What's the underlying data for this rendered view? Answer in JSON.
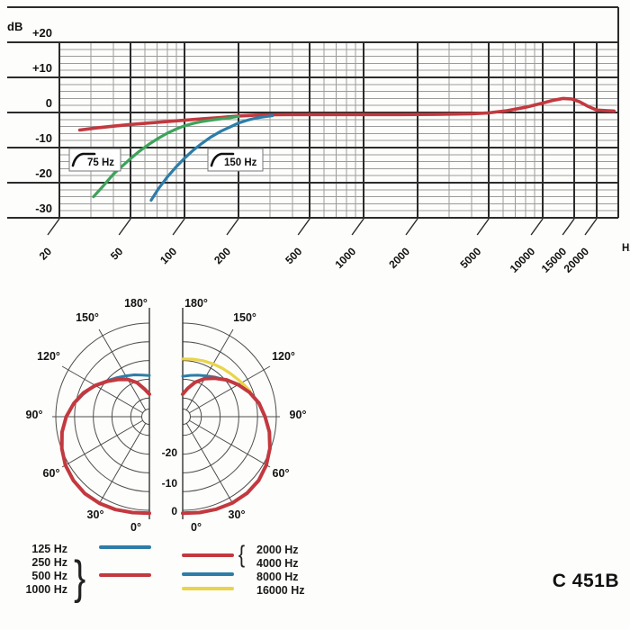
{
  "model_label": "C 451B",
  "colors": {
    "red": "#c2393f",
    "green": "#3da35a",
    "blue": "#2d7da8",
    "yellow": "#e9d44b",
    "grid_major": "#2b2b2b",
    "grid_minor": "#9b9b9b",
    "polar_grid": "#4d4d4d",
    "text": "#111111"
  },
  "chart_data": [
    {
      "type": "line",
      "name": "frequency-response",
      "x_scale": "log",
      "x_range_hz": [
        20,
        20000
      ],
      "y_range_db": [
        -30,
        20
      ],
      "y_unit": "dB",
      "x_unit": "Hz",
      "grid": "on",
      "y_ticks": [
        {
          "v": 20,
          "label": "+20"
        },
        {
          "v": 10,
          "label": "+10"
        },
        {
          "v": 0,
          "label": "0"
        },
        {
          "v": -10,
          "label": "-10"
        },
        {
          "v": -20,
          "label": "-20"
        },
        {
          "v": -30,
          "label": "-30"
        }
      ],
      "x_ticks": [
        {
          "v": 20,
          "label": "20"
        },
        {
          "v": 50,
          "label": "50"
        },
        {
          "v": 100,
          "label": "100"
        },
        {
          "v": 200,
          "label": "200"
        },
        {
          "v": 500,
          "label": "500"
        },
        {
          "v": 1000,
          "label": "1000"
        },
        {
          "v": 2000,
          "label": "2000"
        },
        {
          "v": 5000,
          "label": "5000"
        },
        {
          "v": 10000,
          "label": "10000"
        },
        {
          "v": 15000,
          "label": "15000"
        },
        {
          "v": 20000,
          "label": "20000"
        }
      ],
      "annotations": [
        {
          "label": "75 Hz",
          "symbol": "bass-cut-filter"
        },
        {
          "label": "150 Hz",
          "symbol": "bass-cut-filter"
        }
      ],
      "series": [
        {
          "name": "linear-response",
          "color": "red",
          "points": [
            [
              26,
              -5
            ],
            [
              32,
              -4.4
            ],
            [
              40,
              -3.9
            ],
            [
              50,
              -3.4
            ],
            [
              63,
              -3
            ],
            [
              80,
              -2.6
            ],
            [
              100,
              -2.2
            ],
            [
              125,
              -1.8
            ],
            [
              160,
              -1.4
            ],
            [
              200,
              -1
            ],
            [
              250,
              -0.75
            ],
            [
              315,
              -0.65
            ],
            [
              400,
              -0.6
            ],
            [
              630,
              -0.6
            ],
            [
              1000,
              -0.6
            ],
            [
              1600,
              -0.6
            ],
            [
              2500,
              -0.55
            ],
            [
              4000,
              -0.35
            ],
            [
              5000,
              -0.1
            ],
            [
              6300,
              0.5
            ],
            [
              8000,
              1.5
            ],
            [
              10000,
              2.7
            ],
            [
              11500,
              3.5
            ],
            [
              13000,
              4
            ],
            [
              14500,
              3.85
            ],
            [
              16000,
              3.1
            ],
            [
              18000,
              1.7
            ],
            [
              20000,
              0.7
            ],
            [
              25000,
              0.4
            ]
          ]
        },
        {
          "name": "bass-cut-75hz",
          "color": "green",
          "points": [
            [
              31,
              -24
            ],
            [
              35,
              -21
            ],
            [
              40,
              -17.6
            ],
            [
              45,
              -15.2
            ],
            [
              50,
              -13.1
            ],
            [
              56,
              -11
            ],
            [
              63,
              -9.1
            ],
            [
              71,
              -7.4
            ],
            [
              80,
              -5.9
            ],
            [
              90,
              -4.7
            ],
            [
              100,
              -3.8
            ],
            [
              112,
              -3.1
            ],
            [
              125,
              -2.6
            ],
            [
              140,
              -2.2
            ],
            [
              160,
              -1.8
            ],
            [
              180,
              -1.5
            ],
            [
              200,
              -1.1
            ]
          ]
        },
        {
          "name": "bass-cut-150hz",
          "color": "blue",
          "points": [
            [
              65,
              -25
            ],
            [
              72,
              -21.5
            ],
            [
              80,
              -18.4
            ],
            [
              90,
              -15.4
            ],
            [
              100,
              -13
            ],
            [
              112,
              -10.7
            ],
            [
              125,
              -8.8
            ],
            [
              140,
              -7
            ],
            [
              160,
              -5.3
            ],
            [
              180,
              -4.1
            ],
            [
              200,
              -3
            ],
            [
              224,
              -2.2
            ],
            [
              250,
              -1.6
            ],
            [
              280,
              -1.2
            ],
            [
              310,
              -0.9
            ]
          ]
        }
      ]
    },
    {
      "type": "polar",
      "name": "polar-pattern",
      "rings": 5,
      "db_ring_labels": [
        "-20",
        "-10",
        "0"
      ],
      "angle_labels": [
        "180°",
        "150°",
        "120°",
        "90°",
        "60°",
        "30°",
        "0°"
      ],
      "halves": {
        "left": [
          {
            "name": "125hz",
            "color": "blue",
            "points": [
              [
                180,
                -14
              ],
              [
                170,
                -13.7
              ],
              [
                160,
                -13.1
              ],
              [
                150,
                -12.4
              ],
              [
                140,
                -11.4
              ],
              [
                130,
                -10.1
              ],
              [
                122,
                -8.8
              ],
              [
                115,
                -7.5
              ],
              [
                108,
                -6.2
              ],
              [
                102,
                -5.1
              ]
            ]
          },
          {
            "name": "250-500-1000hz",
            "color": "red",
            "points": [
              [
                180,
                -19
              ],
              [
                170,
                -17.5
              ],
              [
                160,
                -15.3
              ],
              [
                150,
                -13.5
              ],
              [
                140,
                -12
              ],
              [
                130,
                -10.3
              ],
              [
                120,
                -8.3
              ],
              [
                110,
                -6.3
              ],
              [
                100,
                -4.5
              ],
              [
                90,
                -2.8
              ],
              [
                80,
                -1.3
              ],
              [
                70,
                -0.1
              ],
              [
                60,
                0.9
              ],
              [
                50,
                1.5
              ],
              [
                40,
                1.8
              ],
              [
                30,
                1.7
              ],
              [
                20,
                1.4
              ],
              [
                10,
                1
              ],
              [
                0,
                0.8
              ]
            ]
          }
        ],
        "right": [
          {
            "name": "8000hz",
            "color": "blue",
            "points": [
              [
                180,
                -14.2
              ],
              [
                170,
                -13.8
              ],
              [
                160,
                -13.2
              ],
              [
                150,
                -12.4
              ],
              [
                141,
                -11.4
              ],
              [
                133,
                -10.3
              ],
              [
                126,
                -9.1
              ],
              [
                120,
                -8.1
              ]
            ]
          },
          {
            "name": "16000hz",
            "color": "yellow",
            "points": [
              [
                180,
                -9.6
              ],
              [
                170,
                -9.4
              ],
              [
                160,
                -9.1
              ],
              [
                150,
                -8.7
              ],
              [
                141,
                -8.3
              ],
              [
                132,
                -7.8
              ],
              [
                124,
                -7.2
              ],
              [
                117,
                -6.5
              ],
              [
                111,
                -5.8
              ]
            ]
          },
          {
            "name": "2000-4000hz",
            "color": "red",
            "points": [
              [
                180,
                -19
              ],
              [
                170,
                -17.3
              ],
              [
                160,
                -15.2
              ],
              [
                150,
                -13.3
              ],
              [
                140,
                -11.6
              ],
              [
                130,
                -9.7
              ],
              [
                120,
                -7.9
              ],
              [
                110,
                -6
              ],
              [
                100,
                -4.3
              ],
              [
                90,
                -3
              ],
              [
                80,
                -1.5
              ],
              [
                70,
                -0.2
              ],
              [
                60,
                0.8
              ],
              [
                50,
                1.5
              ],
              [
                40,
                1.7
              ],
              [
                30,
                1.6
              ],
              [
                20,
                1.3
              ],
              [
                10,
                1
              ],
              [
                0,
                0.8
              ]
            ]
          }
        ]
      }
    }
  ],
  "legend": {
    "left": {
      "rows": [
        "125 Hz",
        "250 Hz",
        "500 Hz",
        "1000 Hz"
      ],
      "brace": "}"
    },
    "right": {
      "rows": [
        "2000 Hz",
        "4000 Hz",
        "8000 Hz",
        "16000 Hz"
      ],
      "brace": "{"
    }
  }
}
